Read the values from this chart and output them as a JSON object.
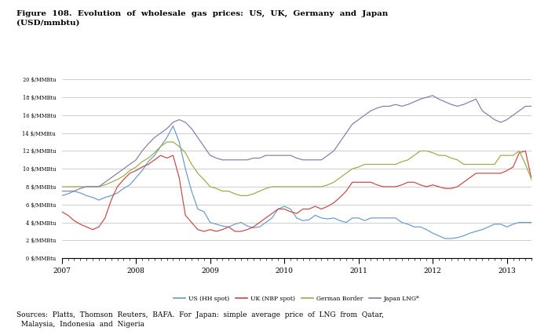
{
  "title": "Figure  108.  Evolution  of  wholesale  gas  prices:  US,  UK,  Germany  and  Japan\n(USD/mmbtu)",
  "source_text": "Sources:  Platts,  Thomson  Reuters,  BAFA.  For  Japan:  simple  average  price  of  LNG  from  Qatar,\n  Malaysia,  Indonesia  and  Nigeria",
  "ylim": [
    0,
    20
  ],
  "ytick_vals": [
    0,
    2,
    4,
    6,
    8,
    10,
    12,
    14,
    16,
    18,
    20
  ],
  "colors": {
    "US": "#6699CC",
    "UK": "#CC4444",
    "German": "#99AA44",
    "Japan": "#8877AA"
  },
  "legend_labels": [
    "US (HH spot)",
    "UK (NBP spot)",
    "German Border",
    "Japan LNG*"
  ],
  "grid_color": "#BBBBBB",
  "n_months": 77,
  "year_tick_positions": [
    0,
    12,
    24,
    36,
    48,
    60,
    72
  ],
  "year_labels": [
    "2007",
    "2008",
    "2009",
    "2010",
    "2011",
    "2012",
    "2013"
  ],
  "us_hh": [
    7.0,
    7.2,
    7.5,
    7.3,
    7.0,
    6.8,
    6.5,
    6.8,
    7.0,
    7.3,
    7.8,
    8.2,
    9.0,
    9.8,
    10.8,
    11.5,
    12.5,
    13.5,
    14.8,
    13.0,
    10.0,
    7.5,
    5.5,
    5.2,
    4.0,
    3.8,
    3.6,
    3.5,
    3.8,
    4.0,
    3.6,
    3.4,
    3.5,
    4.0,
    4.5,
    5.5,
    5.8,
    5.5,
    4.5,
    4.2,
    4.3,
    4.8,
    4.5,
    4.4,
    4.5,
    4.2,
    4.0,
    4.5,
    4.5,
    4.2,
    4.5,
    4.5,
    4.5,
    4.5,
    4.5,
    4.0,
    3.8,
    3.5,
    3.5,
    3.2,
    2.8,
    2.5,
    2.2,
    2.2,
    2.3,
    2.5,
    2.8,
    3.0,
    3.2,
    3.5,
    3.8,
    3.8,
    3.5,
    3.8,
    4.0,
    4.0,
    4.0
  ],
  "uk_nbp": [
    5.2,
    4.8,
    4.2,
    3.8,
    3.5,
    3.2,
    3.5,
    4.5,
    6.5,
    8.0,
    8.8,
    9.5,
    9.8,
    10.2,
    10.5,
    11.0,
    11.5,
    11.2,
    11.5,
    9.0,
    4.8,
    4.0,
    3.2,
    3.0,
    3.2,
    3.0,
    3.2,
    3.5,
    3.0,
    3.0,
    3.2,
    3.5,
    4.0,
    4.5,
    5.0,
    5.5,
    5.5,
    5.2,
    5.0,
    5.5,
    5.5,
    5.8,
    5.5,
    5.8,
    6.2,
    6.8,
    7.5,
    8.5,
    8.5,
    8.5,
    8.5,
    8.2,
    8.0,
    8.0,
    8.0,
    8.2,
    8.5,
    8.5,
    8.2,
    8.0,
    8.2,
    8.0,
    7.8,
    7.8,
    8.0,
    8.5,
    9.0,
    9.5,
    9.5,
    9.5,
    9.5,
    9.5,
    9.8,
    10.2,
    11.8,
    12.0,
    8.8
  ],
  "german_border": [
    8.0,
    8.0,
    8.0,
    8.0,
    8.0,
    8.0,
    8.0,
    8.2,
    8.5,
    8.8,
    9.2,
    9.8,
    10.2,
    10.8,
    11.2,
    11.8,
    12.5,
    13.0,
    13.0,
    12.5,
    11.8,
    10.5,
    9.5,
    8.8,
    8.0,
    7.8,
    7.5,
    7.5,
    7.2,
    7.0,
    7.0,
    7.2,
    7.5,
    7.8,
    8.0,
    8.0,
    8.0,
    8.0,
    8.0,
    8.0,
    8.0,
    8.0,
    8.0,
    8.2,
    8.5,
    9.0,
    9.5,
    10.0,
    10.2,
    10.5,
    10.5,
    10.5,
    10.5,
    10.5,
    10.5,
    10.8,
    11.0,
    11.5,
    12.0,
    12.0,
    11.8,
    11.5,
    11.5,
    11.2,
    11.0,
    10.5,
    10.5,
    10.5,
    10.5,
    10.5,
    10.5,
    11.5,
    11.5,
    11.5,
    12.0,
    10.5,
    8.8
  ],
  "japan_lng": [
    7.5,
    7.5,
    7.5,
    7.8,
    8.0,
    8.0,
    8.0,
    8.5,
    9.0,
    9.5,
    10.0,
    10.5,
    11.0,
    12.0,
    12.8,
    13.5,
    14.0,
    14.5,
    15.2,
    15.5,
    15.2,
    14.5,
    13.5,
    12.5,
    11.5,
    11.2,
    11.0,
    11.0,
    11.0,
    11.0,
    11.0,
    11.2,
    11.2,
    11.5,
    11.5,
    11.5,
    11.5,
    11.5,
    11.2,
    11.0,
    11.0,
    11.0,
    11.0,
    11.5,
    12.0,
    13.0,
    14.0,
    15.0,
    15.5,
    16.0,
    16.5,
    16.8,
    17.0,
    17.0,
    17.2,
    17.0,
    17.2,
    17.5,
    17.8,
    18.0,
    18.2,
    17.8,
    17.5,
    17.2,
    17.0,
    17.2,
    17.5,
    17.8,
    16.5,
    16.0,
    15.5,
    15.2,
    15.5,
    16.0,
    16.5,
    17.0,
    17.0
  ]
}
